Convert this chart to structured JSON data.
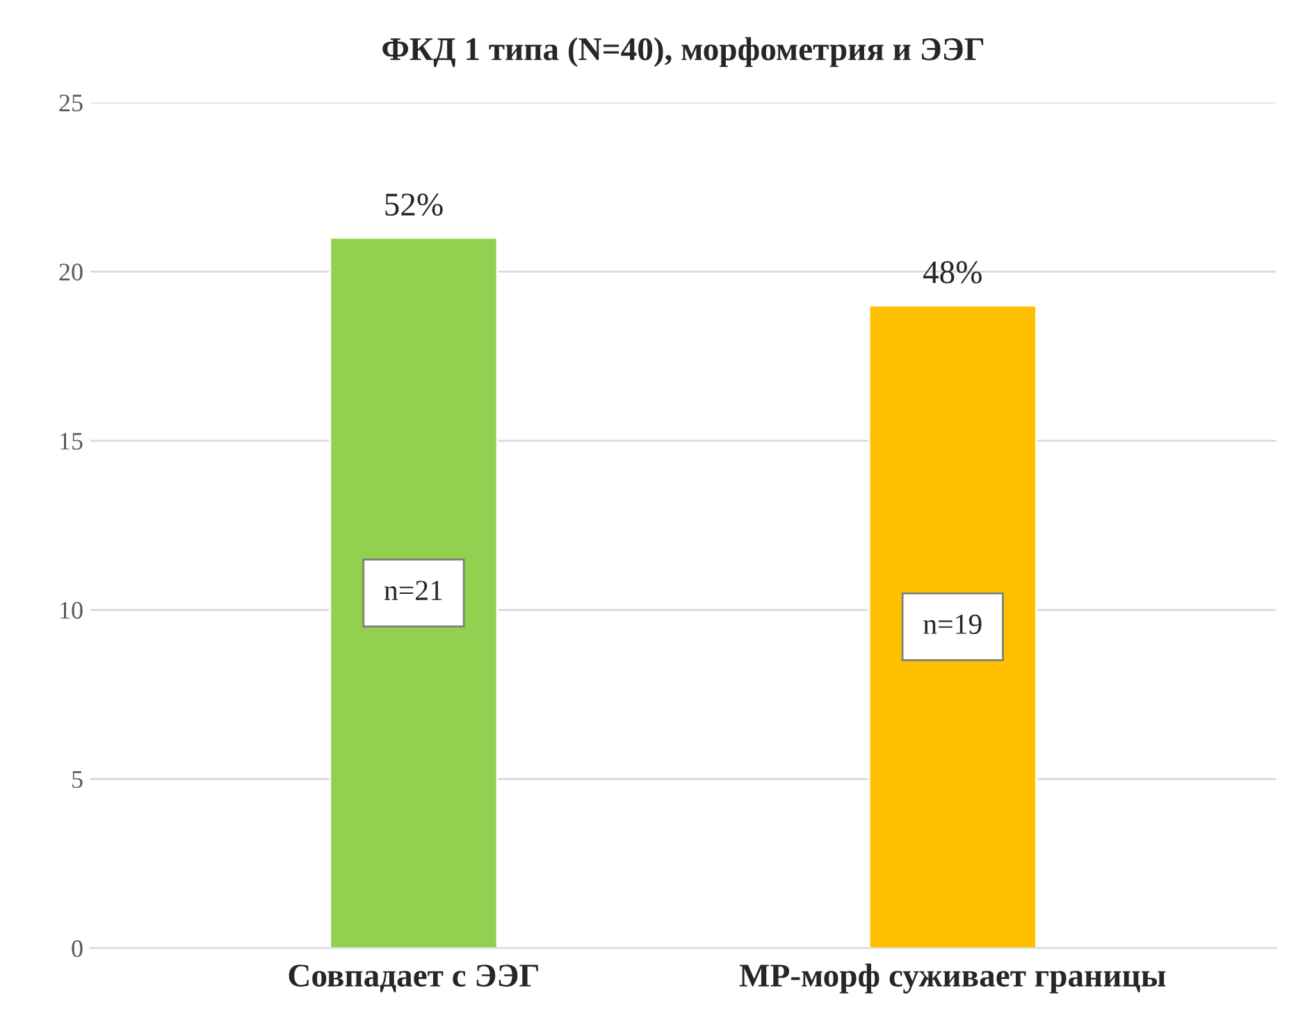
{
  "chart_data": {
    "type": "bar",
    "title": "ФКД 1 типа (N=40), морфометрия и ЭЭГ",
    "categories": [
      "Совпадает с ЭЭГ",
      "МР-морф суживает границы"
    ],
    "values": [
      21,
      19
    ],
    "colors": [
      "#92d050",
      "#ffc000"
    ],
    "value_labels": [
      "n=21",
      "n=19"
    ],
    "annotations": [
      "52%",
      "48%"
    ],
    "ylim": [
      0,
      25
    ],
    "yticks": [
      0,
      5,
      10,
      15,
      20,
      25
    ],
    "grid": "y",
    "legend": false
  }
}
